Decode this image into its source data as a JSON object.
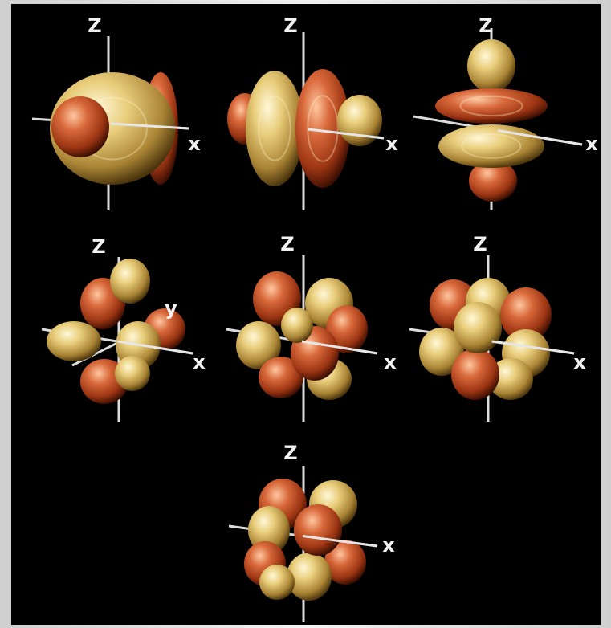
{
  "panels": [
    {
      "z": "Z",
      "x": "x"
    },
    {
      "z": "Z",
      "x": "x"
    },
    {
      "z": "Z",
      "x": "x"
    },
    {
      "z": "Z",
      "y": "y",
      "x": "x"
    },
    {
      "z": "Z",
      "x": "x"
    },
    {
      "z": "Z",
      "x": "x"
    },
    {
      "z": "Z",
      "x": "x"
    }
  ]
}
